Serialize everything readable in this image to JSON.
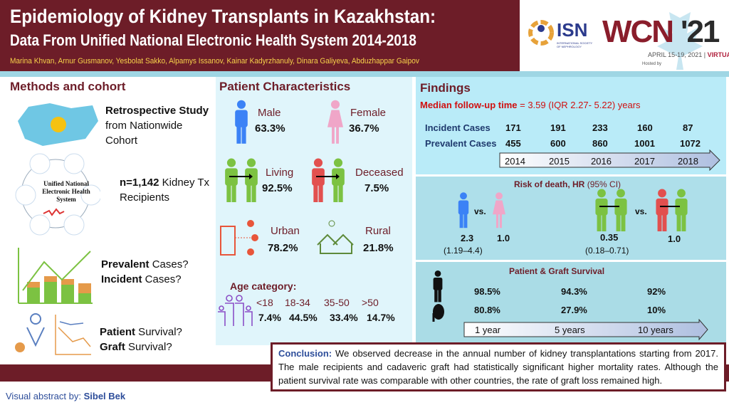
{
  "header": {
    "title": "Epidemiology of Kidney Transplants in Kazakhstan:",
    "subtitle": "Data From Unified National Electronic Health System 2014-2018",
    "authors": "Marina Khvan, Arnur Gusmanov, Yesbolat Sakko, Alpamys Issanov, Kainar Kadyrzhanuly, Dinara Galiyeva, Abduzhappar Gaipov"
  },
  "logo": {
    "isn": "ISN",
    "isn_sub": "INTERNATIONAL SOCIETY OF NEPHROLOGY",
    "wcn": "WCN",
    "year": "'21",
    "date": "APRIL 15-19, 2021 |",
    "virtual": "VIRTUAL",
    "hosted": "Hosted by"
  },
  "methods": {
    "title": "Methods and cohort",
    "study_bold": "Retrospective Study",
    "study_rest": " from Nationwide Cohort",
    "ehs": "Unified National Electronic Health System",
    "n_bold": "n=1,142",
    "n_rest": " Kidney Tx Recipients",
    "prev_bold": "Prevalent",
    "inc_bold": "Incident",
    "cases": " Cases?",
    "pat_bold": "Patient",
    "graft_bold": "Graft",
    "survival": " Survival?"
  },
  "characteristics": {
    "title": "Patient Characteristics",
    "male": "Male",
    "male_pct": "63.3%",
    "female": "Female",
    "female_pct": "36.7%",
    "living": "Living",
    "living_pct": "92.5%",
    "deceased": "Deceased",
    "deceased_pct": "7.5%",
    "urban": "Urban",
    "urban_pct": "78.2%",
    "rural": "Rural",
    "rural_pct": "21.8%",
    "age_title": "Age category:",
    "ages": [
      "<18",
      "18-34",
      "35-50",
      ">50"
    ],
    "age_pcts": [
      "7.4%",
      "44.5%",
      "33.4%",
      "14.7%"
    ]
  },
  "findings": {
    "title": "Findings",
    "median_label": "Median follow-up time",
    "median_value": " = 3.59 (IQR 2.27- 5.22) years",
    "incident_label": "Incident Cases",
    "prevalent_label": "Prevalent Cases",
    "years": [
      "2014",
      "2015",
      "2016",
      "2017",
      "2018"
    ],
    "incident": [
      "171",
      "191",
      "233",
      "160",
      "87"
    ],
    "prevalent": [
      "455",
      "600",
      "860",
      "1001",
      "1072"
    ]
  },
  "risk": {
    "title_bold": "Risk of death, HR",
    "title_rest": " (95% CI)",
    "vs": "vs.",
    "male_hr": "2.3",
    "male_ci": "(1.19–4.4)",
    "female_hr": "1.0",
    "living_hr": "0.35",
    "living_ci": "(0.18–0.71)",
    "deceased_hr": "1.0"
  },
  "survival": {
    "title": "Patient & Graft Survival",
    "patient": [
      "98.5%",
      "94.3%",
      "92%"
    ],
    "graft": [
      "80.8%",
      "27.9%",
      "10%"
    ],
    "periods": [
      "1 year",
      "5 years",
      "10 years"
    ]
  },
  "conclusion": {
    "label": "Conclusion:",
    "text": " We observed decrease in the annual number of kidney transplantations starting from 2017. The male recipients and cadaveric graft had statistically significant higher mortality rates. Although the patient survival rate was comparable with other countries, the rate of graft loss remained high."
  },
  "footer": {
    "label": "Visual abstract by: ",
    "author": "Sibel Bek"
  },
  "colors": {
    "maroon": "#6d1d28",
    "male": "#3b82f6",
    "female": "#f0a6c8",
    "green": "#7cc242",
    "red": "#e2504f",
    "navy": "#1f3a6e"
  }
}
